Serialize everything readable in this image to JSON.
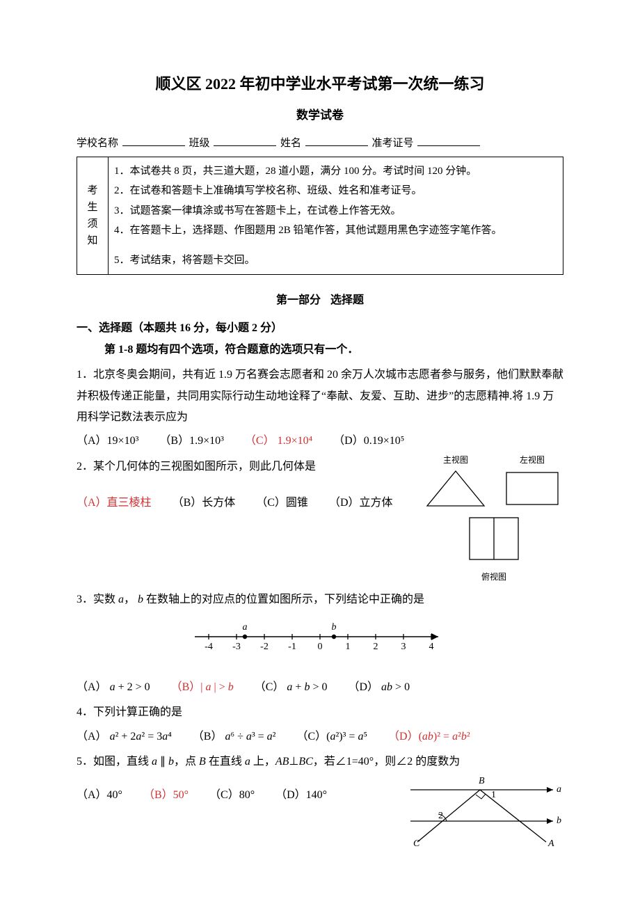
{
  "title": "顺义区 2022 年初中学业水平考试第一次统一练习",
  "subtitle": "数学试卷",
  "header": {
    "school_label": "学校名称",
    "class_label": "班级",
    "name_label": "姓名",
    "ticket_label": "准考证号"
  },
  "notice": {
    "left_label": "考生须知",
    "items": [
      "1．本试卷共 8 页，共三道大题，28 道小题，满分 100 分。考试时间 120 分钟。",
      "2．在试卷和答题卡上准确填写学校名称、班级、姓名和准考证号。",
      "3．试题答案一律填涂或书写在答题卡上，在试卷上作答无效。",
      "4．在答题卡上，选择题、作图题用 2B 铅笔作答，其他试题用黑色字迹签字笔作答。",
      "5．考试结束，将答题卡交回。"
    ]
  },
  "section1": {
    "label_a": "第一部分",
    "label_b": "选择题"
  },
  "mc_header": "一、选择题（本题共 16 分，每小题 2 分）",
  "mc_instr": "第 1-8 题均有四个选项，符合题意的选项只有一个．",
  "q1": {
    "text": "1．北京冬奥会期间，共有近 1.9 万名赛会志愿者和 20 余万人次城市志愿者参与服务，他们默默奉献并积极传递正能量，共同用实际行动生动地诠释了“奉献、友爱、互助、进步”的志愿精神.将 1.9 万用科学记数法表示应为",
    "A": "（A）19×10³",
    "B": "（B）1.9×10³",
    "C": "（C） 1.9×10⁴",
    "D": "（D）0.19×10⁵"
  },
  "q2": {
    "text": "2．某个几何体的三视图如图所示，则此几何体是",
    "A": "（A）直三棱柱",
    "B": "（B）长方体",
    "C": "（C）圆锥",
    "D": "（D）立方体",
    "views": {
      "front": "主视图",
      "left": "左视图",
      "top": "俯视图"
    }
  },
  "q3": {
    "text_a": "3．实数 ",
    "text_b": "， ",
    "text_c": " 在数轴上的对应点的位置如图所示，下列结论中正确的是",
    "A_pre": "（A） ",
    "A_math": "a + 2 > 0",
    "B_pre": "（B）",
    "B_math": "| a | > b",
    "C_pre": "（C） ",
    "C_math": "a + b > 0",
    "D_pre": "（D） ",
    "D_math": "ab > 0",
    "ticks": [
      "-4",
      "-3",
      "-2",
      "-1",
      "0",
      "1",
      "2",
      "3",
      "4"
    ],
    "a_label": "a",
    "b_label": "b"
  },
  "q4": {
    "text": "4．下列计算正确的是",
    "A_pre": "（A） ",
    "A_math": "a² + 2a² = 3a⁴",
    "B_pre": "（B） ",
    "B_math": "a⁶ ÷ a³ = a²",
    "C_pre": "（C）",
    "C_math": "(a²)³ = a⁵",
    "D_pre": "（D）",
    "D_math": "(ab)² = a²b²"
  },
  "q5": {
    "text_a": "5．如图，直线 ",
    "text_b": "，点 ",
    "text_c": " 在直线 ",
    "text_d": " 上，",
    "text_e": "，若∠1=40°，则∠2 的度数为",
    "A": "（A）40°",
    "B": "（B）50°",
    "C": "（C）80°",
    "D": "（D）140°",
    "labels": {
      "B": "B",
      "a": "a",
      "b": "b",
      "C": "C",
      "A": "A",
      "one": "1",
      "two": "2"
    }
  },
  "colors": {
    "red": "#d03030",
    "black": "#000000",
    "bg": "#ffffff"
  }
}
